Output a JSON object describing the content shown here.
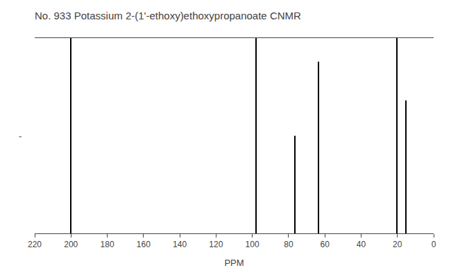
{
  "chart_data": {
    "type": "stem",
    "title": "No. 933 Potassium 2-(1'-ethoxy)ethoxypropanoate CNMR",
    "xlabel": "PPM",
    "ylabel": "-",
    "x": [
      200.0,
      98.0,
      76.5,
      63.5,
      20.3,
      15.2
    ],
    "values": [
      1.0,
      1.0,
      0.5,
      0.88,
      1.0,
      0.68
    ],
    "color": "#000000",
    "xlim": [
      220,
      0
    ],
    "ylim": [
      0,
      1.0
    ],
    "xticks": [
      220,
      200,
      180,
      160,
      140,
      120,
      100,
      80,
      60,
      40,
      20,
      0
    ],
    "tick_labels": "x",
    "grid": false
  }
}
